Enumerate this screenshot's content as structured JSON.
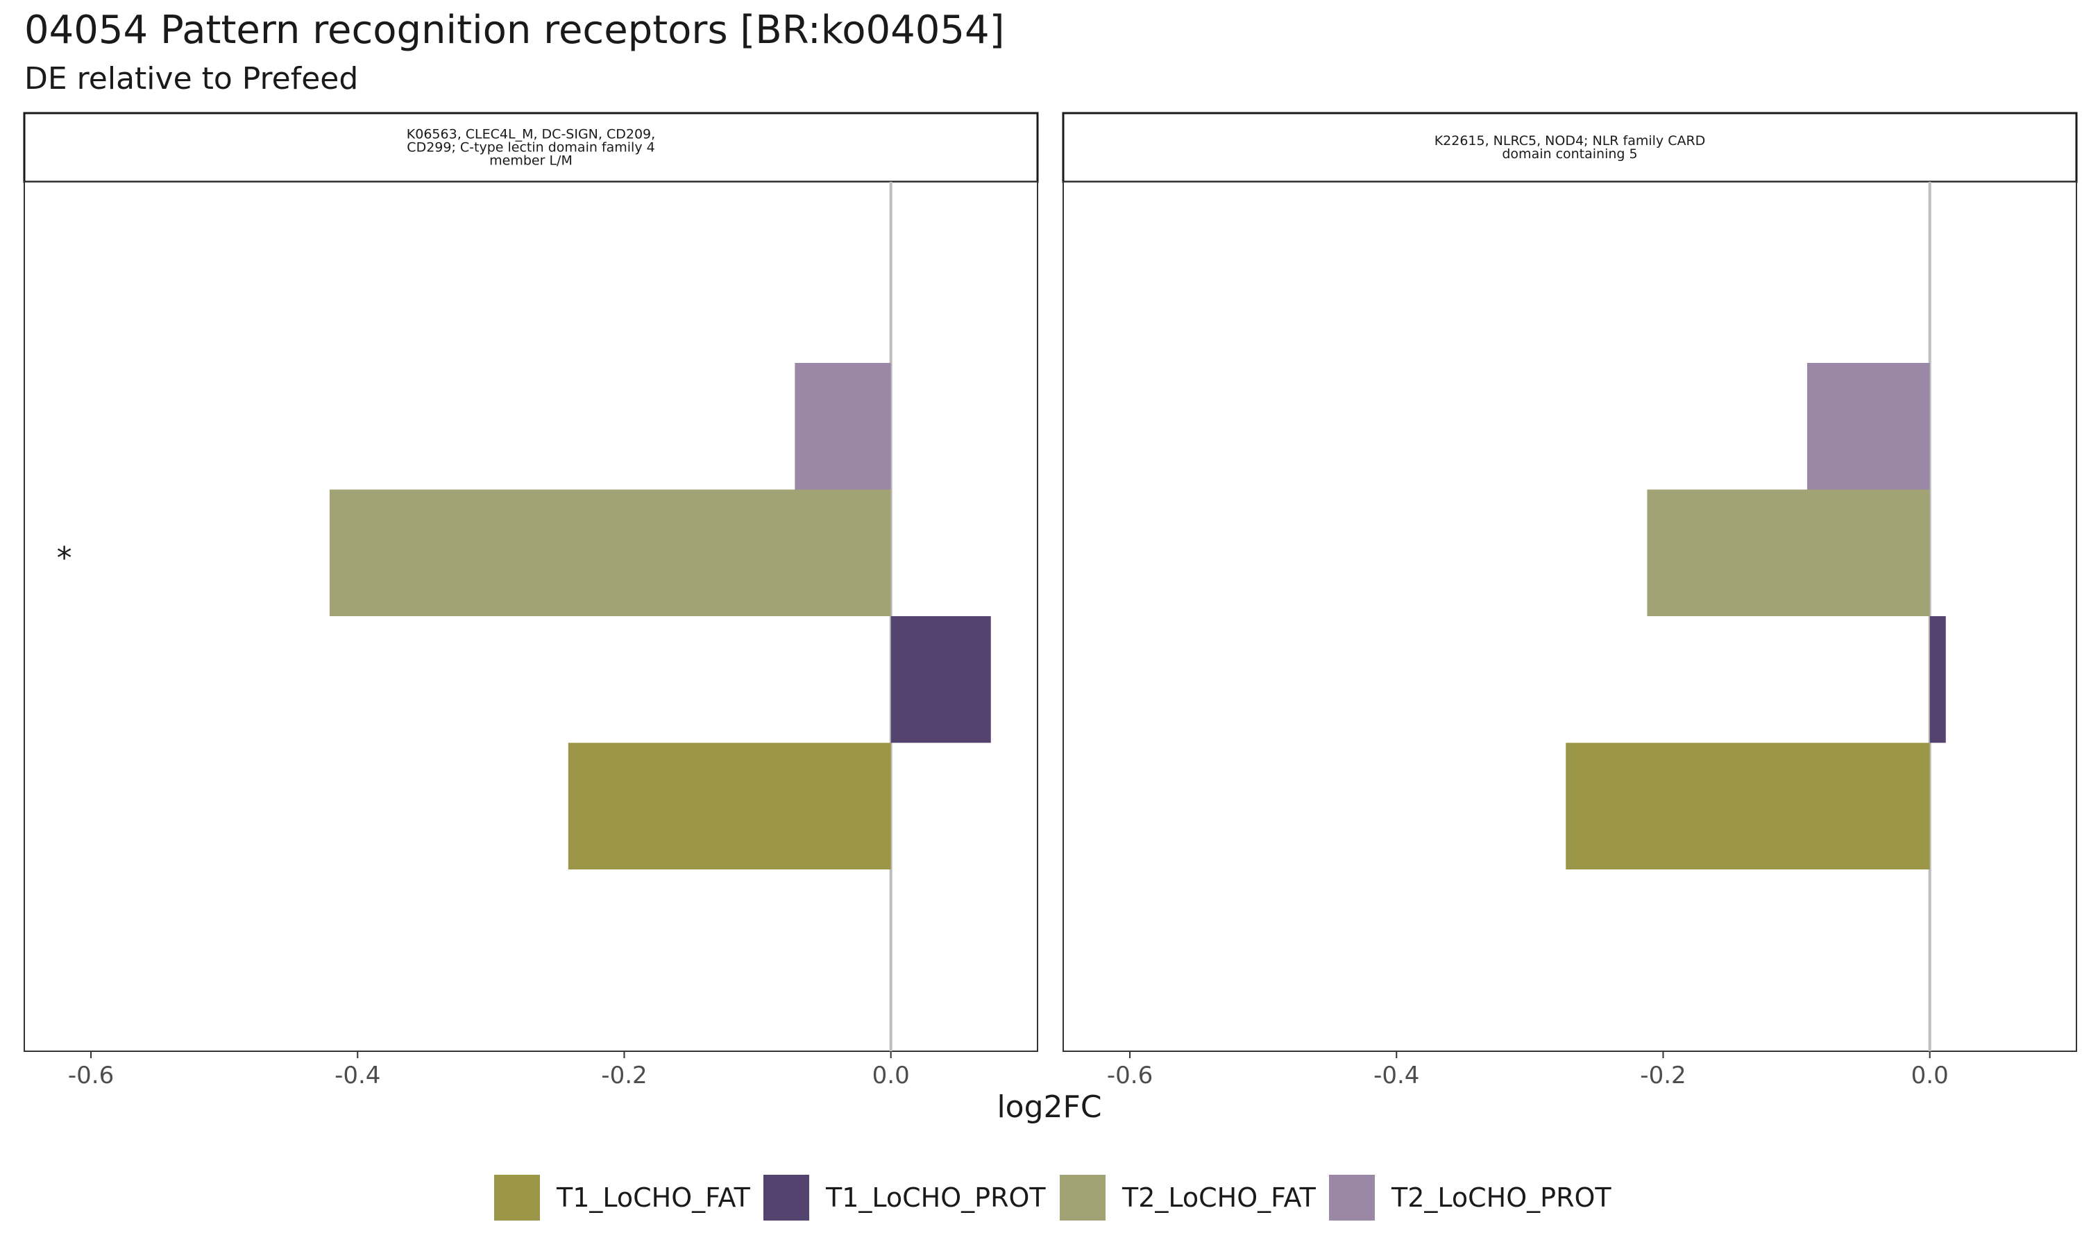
{
  "chart_data": {
    "type": "bar",
    "orientation": "horizontal",
    "title": "04054 Pattern recognition receptors [BR:ko04054]",
    "subtitle": "DE relative to Prefeed",
    "xlabel": "log2FC",
    "xlim": [
      -0.65,
      0.11
    ],
    "x_ticks": [
      -0.6,
      -0.4,
      -0.2,
      0.0
    ],
    "x_tick_labels": [
      "-0.6",
      "-0.4",
      "-0.2",
      "0.0"
    ],
    "grid": false,
    "legend_position": "bottom",
    "series": [
      {
        "name": "T1_LoCHO_FAT",
        "color": "#9c9649"
      },
      {
        "name": "T1_LoCHO_PROT",
        "color": "#54436e"
      },
      {
        "name": "T2_LoCHO_FAT",
        "color": "#a2a375"
      },
      {
        "name": "T2_LoCHO_PROT",
        "color": "#9b87a6"
      }
    ],
    "panels": [
      {
        "strip_lines": [
          "K06563, CLEC4L_M, DC-SIGN, CD209,",
          "CD299; C-type lectin domain family 4",
          "member L/M"
        ],
        "values": {
          "T1_LoCHO_FAT": -0.242,
          "T1_LoCHO_PROT": 0.075,
          "T2_LoCHO_FAT": -0.421,
          "T2_LoCHO_PROT": -0.072
        },
        "annotation": {
          "series": "T2_LoCHO_FAT",
          "text": "*",
          "x": -0.62
        }
      },
      {
        "strip_lines": [
          "K22615, NLRC5, NOD4; NLR family CARD",
          "domain containing 5"
        ],
        "values": {
          "T1_LoCHO_FAT": -0.273,
          "T1_LoCHO_PROT": 0.012,
          "T2_LoCHO_FAT": -0.212,
          "T2_LoCHO_PROT": -0.092
        },
        "annotation": null
      }
    ]
  }
}
